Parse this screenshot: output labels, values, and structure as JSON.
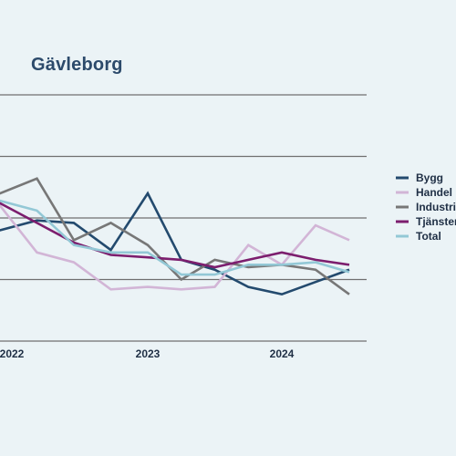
{
  "title": "Gävleborg",
  "colors": {
    "background": "#ebf3f6",
    "gridline": "#6f6f6f",
    "title": "#2c4a6b",
    "text": "#1f2f45"
  },
  "chart_data": {
    "type": "line",
    "title": "Gävleborg",
    "xlabel": "",
    "ylabel": "",
    "grid": true,
    "legend_position": "right",
    "x_ticks": [
      "2022",
      "2023",
      "2024"
    ],
    "x": [
      2021.875,
      2022.0,
      2022.25,
      2022.5,
      2022.75,
      2023.0,
      2023.25,
      2023.5,
      2023.75,
      2024.0,
      2024.25,
      2024.5
    ],
    "ylim": [
      0,
      5
    ],
    "series": [
      {
        "name": "Bygg",
        "color": "#234a6e",
        "values": [
          2.2,
          2.25,
          2.45,
          2.4,
          1.85,
          3.0,
          1.65,
          1.45,
          1.1,
          0.95,
          1.2,
          1.45
        ]
      },
      {
        "name": "Handel",
        "color": "#d2b5d6",
        "values": [
          2.9,
          2.75,
          1.8,
          1.6,
          1.05,
          1.1,
          1.05,
          1.1,
          1.95,
          1.55,
          2.35,
          2.05
        ]
      },
      {
        "name": "Industri",
        "color": "#777777",
        "values": [
          3.05,
          3.0,
          3.3,
          2.05,
          2.4,
          1.95,
          1.25,
          1.65,
          1.5,
          1.55,
          1.45,
          0.95
        ]
      },
      {
        "name": "Tjänster",
        "color": "#7c1e6e",
        "values": [
          2.95,
          2.8,
          2.4,
          2.0,
          1.75,
          1.7,
          1.65,
          1.5,
          1.65,
          1.8,
          1.65,
          1.55
        ]
      },
      {
        "name": "Total",
        "color": "#93c8d6",
        "values": [
          3.0,
          2.85,
          2.65,
          1.95,
          1.8,
          1.8,
          1.35,
          1.35,
          1.55,
          1.55,
          1.6,
          1.4
        ]
      }
    ]
  }
}
